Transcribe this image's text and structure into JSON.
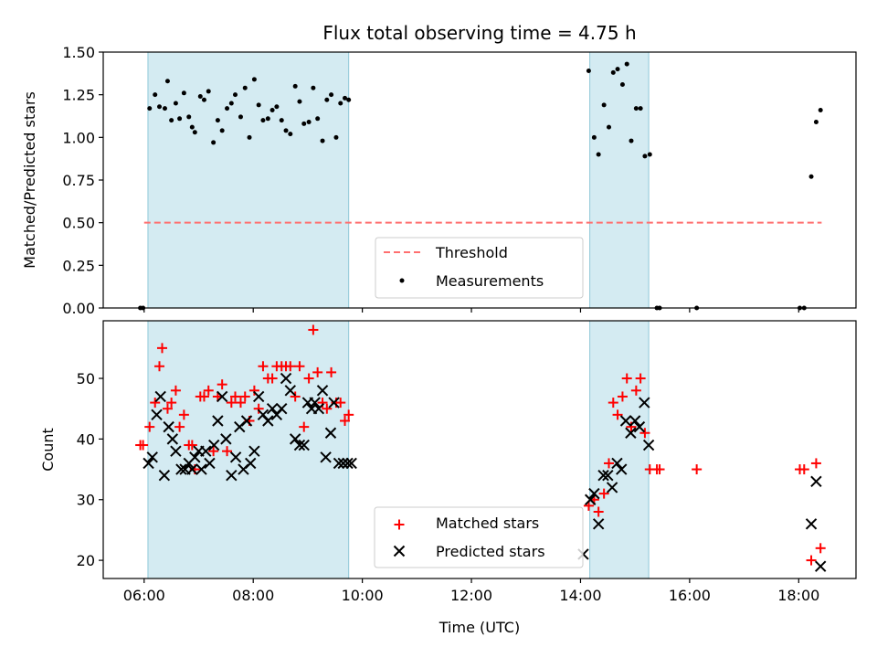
{
  "chart_data": [
    {
      "type": "scatter",
      "title": "Flux total observing time = 4.75 h",
      "xlabel": "",
      "ylabel": "Matched/Predicted stars",
      "ylim": [
        0.0,
        1.5
      ],
      "yticks": [
        "0.00",
        "0.25",
        "0.50",
        "0.75",
        "1.00",
        "1.25",
        "1.50"
      ],
      "xlim_hours": [
        5.25,
        19.05
      ],
      "shaded_intervals_hours": [
        [
          6.07,
          9.75
        ],
        [
          14.17,
          15.25
        ]
      ],
      "shade_color": "#add8e6",
      "legend_position": "lower-center",
      "legend": [
        "Threshold",
        "Measurements"
      ],
      "threshold": {
        "name": "Threshold",
        "value": 0.5,
        "x_range": [
          6.0,
          18.42
        ],
        "color": "#ff6f6f",
        "style": "dashed"
      },
      "series": [
        {
          "name": "Measurements",
          "marker": "dot",
          "color": "#000000",
          "x": [
            5.93,
            5.98,
            6.1,
            6.2,
            6.28,
            6.38,
            6.43,
            6.5,
            6.58,
            6.65,
            6.73,
            6.82,
            6.88,
            6.93,
            7.03,
            7.1,
            7.18,
            7.27,
            7.35,
            7.43,
            7.52,
            7.6,
            7.67,
            7.77,
            7.85,
            7.93,
            8.02,
            8.1,
            8.18,
            8.27,
            8.35,
            8.43,
            8.52,
            8.6,
            8.68,
            8.77,
            8.85,
            8.93,
            9.02,
            9.1,
            9.18,
            9.27,
            9.35,
            9.43,
            9.52,
            9.6,
            9.68,
            9.75,
            14.15,
            14.25,
            14.33,
            14.43,
            14.52,
            14.6,
            14.68,
            14.77,
            14.85,
            14.93,
            15.02,
            15.1,
            15.18,
            15.27,
            15.4,
            15.45,
            16.13,
            18.02,
            18.1,
            18.23,
            18.32,
            18.4
          ],
          "y": [
            0.0,
            0.0,
            1.17,
            1.25,
            1.18,
            1.17,
            1.33,
            1.1,
            1.2,
            1.11,
            1.26,
            1.12,
            1.06,
            1.03,
            1.24,
            1.22,
            1.27,
            0.97,
            1.1,
            1.04,
            1.17,
            1.2,
            1.25,
            1.12,
            1.29,
            1.0,
            1.34,
            1.19,
            1.1,
            1.11,
            1.16,
            1.18,
            1.1,
            1.04,
            1.02,
            1.3,
            1.21,
            1.08,
            1.09,
            1.29,
            1.11,
            0.98,
            1.22,
            1.25,
            1.0,
            1.2,
            1.23,
            1.22,
            1.39,
            1.0,
            0.9,
            1.19,
            1.06,
            1.38,
            1.4,
            1.31,
            1.43,
            0.98,
            1.17,
            1.17,
            0.89,
            0.9,
            0.0,
            0.0,
            0.0,
            0.0,
            0.0,
            0.77,
            1.09,
            1.16
          ]
        }
      ]
    },
    {
      "type": "scatter",
      "title": "",
      "xlabel": "Time (UTC)",
      "ylabel": "Count",
      "ylim": [
        17.0,
        59.5
      ],
      "yticks": [
        "20",
        "30",
        "40",
        "50"
      ],
      "xlim_hours": [
        5.25,
        19.05
      ],
      "xticks": [
        "06:00",
        "08:00",
        "10:00",
        "12:00",
        "14:00",
        "16:00",
        "18:00"
      ],
      "shaded_intervals_hours": [
        [
          6.07,
          9.75
        ],
        [
          14.17,
          15.25
        ]
      ],
      "shade_color": "#add8e6",
      "legend_position": "lower-center",
      "legend": [
        "Matched stars",
        "Predicted stars"
      ],
      "series": [
        {
          "name": "Matched stars",
          "marker": "plus",
          "color": "#ff0000",
          "x": [
            5.93,
            5.98,
            6.1,
            6.2,
            6.28,
            6.33,
            6.43,
            6.5,
            6.58,
            6.65,
            6.73,
            6.82,
            6.88,
            6.93,
            7.03,
            7.1,
            7.18,
            7.27,
            7.35,
            7.43,
            7.52,
            7.6,
            7.67,
            7.77,
            7.85,
            7.93,
            8.02,
            8.1,
            8.18,
            8.27,
            8.35,
            8.43,
            8.52,
            8.6,
            8.68,
            8.77,
            8.85,
            8.93,
            9.02,
            9.1,
            9.18,
            9.27,
            9.35,
            9.43,
            9.52,
            9.6,
            9.68,
            9.75,
            14.15,
            14.25,
            14.33,
            14.43,
            14.52,
            14.6,
            14.68,
            14.77,
            14.85,
            14.93,
            15.02,
            15.1,
            15.18,
            15.27,
            15.4,
            15.45,
            16.13,
            18.02,
            18.1,
            18.23,
            18.32,
            18.4
          ],
          "y": [
            39,
            39,
            42,
            46,
            52,
            55,
            45,
            46,
            48,
            42,
            44,
            39,
            39,
            35,
            47,
            47,
            48,
            38,
            47,
            49,
            38,
            46,
            47,
            46,
            47,
            43,
            48,
            45,
            52,
            50,
            50,
            52,
            52,
            52,
            52,
            47,
            52,
            42,
            50,
            58,
            51,
            46,
            45,
            51,
            46,
            46,
            43,
            44,
            29,
            30,
            28,
            31,
            36,
            46,
            44,
            47,
            50,
            42,
            48,
            50,
            41,
            35,
            35,
            35,
            35,
            35,
            35,
            20,
            36,
            22
          ]
        },
        {
          "name": "Predicted stars",
          "marker": "x",
          "color": "#000000",
          "x": [
            6.08,
            6.15,
            6.23,
            6.3,
            6.37,
            6.45,
            6.52,
            6.58,
            6.68,
            6.75,
            6.82,
            6.88,
            6.93,
            7.0,
            7.05,
            7.13,
            7.2,
            7.28,
            7.35,
            7.43,
            7.5,
            7.6,
            7.68,
            7.75,
            7.82,
            7.88,
            7.95,
            8.02,
            8.1,
            8.18,
            8.27,
            8.35,
            8.43,
            8.52,
            8.6,
            8.68,
            8.77,
            8.85,
            8.93,
            9.0,
            9.07,
            9.13,
            9.2,
            9.27,
            9.33,
            9.42,
            9.48,
            9.57,
            9.65,
            9.73,
            9.8,
            14.05,
            14.18,
            14.25,
            14.33,
            14.42,
            14.5,
            14.58,
            14.67,
            14.75,
            14.83,
            14.92,
            15.0,
            15.08,
            15.17,
            15.25,
            18.23,
            18.32,
            18.4
          ],
          "y": [
            36,
            37,
            44,
            47,
            34,
            42,
            40,
            38,
            35,
            35,
            36,
            35,
            37,
            38,
            35,
            38,
            36,
            39,
            43,
            47,
            40,
            34,
            37,
            42,
            35,
            43,
            36,
            38,
            47,
            44,
            43,
            45,
            44,
            45,
            50,
            48,
            40,
            39,
            39,
            46,
            45,
            46,
            45,
            48,
            37,
            41,
            46,
            36,
            36,
            36,
            36,
            21,
            30,
            31,
            26,
            34,
            34,
            32,
            36,
            35,
            43,
            41,
            43,
            42,
            46,
            39,
            26,
            33,
            19
          ]
        }
      ]
    }
  ]
}
